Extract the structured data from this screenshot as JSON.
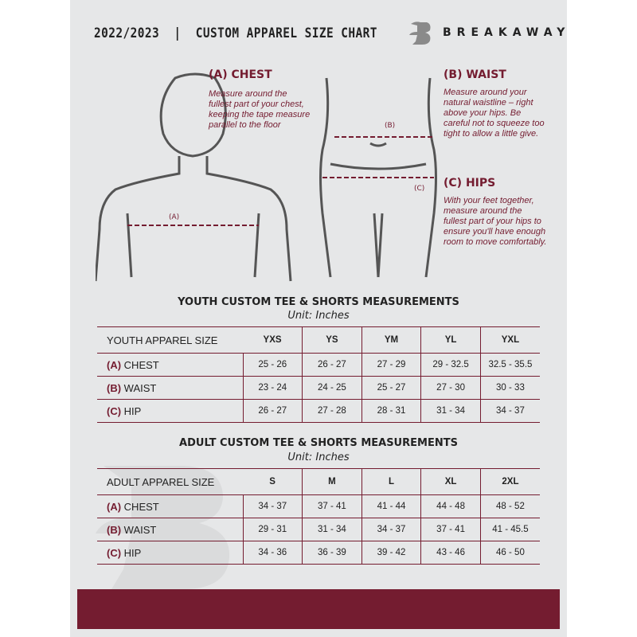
{
  "header": {
    "title": "2022/2023  |  CUSTOM APPAREL SIZE CHART",
    "brand": "BREAKAWAY",
    "logo_letter": "B"
  },
  "chest": {
    "heading": "(A) CHEST",
    "description": "Measure around the fullest part of your chest, keeping the tape measure parallel to the floor",
    "marker": "(A)"
  },
  "waist": {
    "heading": "(B) WAIST",
    "description": "Measure around your natural waistline – right above your hips. Be careful not to squeeze too tight to allow a little give.",
    "marker": "(B)"
  },
  "hips": {
    "heading": "(C) HIPS",
    "description": "With your feet together, measure around the fullest part of your hips to ensure you'll have enough room to move comfortably.",
    "marker": "(C)"
  },
  "youth": {
    "title": "YOUTH CUSTOM TEE & SHORTS MEASUREMENTS",
    "unit": "Unit: Inches",
    "corner": "YOUTH APPAREL SIZE",
    "sizes": [
      "YXS",
      "YS",
      "YM",
      "YL",
      "YXL"
    ],
    "rows": [
      {
        "letter": "(A)",
        "label": "CHEST",
        "values": [
          "25 - 26",
          "26 - 27",
          "27 - 29",
          "29 - 32.5",
          "32.5 - 35.5"
        ]
      },
      {
        "letter": "(B)",
        "label": "WAIST",
        "values": [
          "23 - 24",
          "24 - 25",
          "25 - 27",
          "27 - 30",
          "30 - 33"
        ]
      },
      {
        "letter": "(C)",
        "label": "HIP",
        "values": [
          "26 - 27",
          "27 - 28",
          "28 - 31",
          "31 - 34",
          "34 - 37"
        ]
      }
    ]
  },
  "adult": {
    "title": "ADULT CUSTOM TEE & SHORTS MEASUREMENTS",
    "unit": "Unit: Inches",
    "corner": "ADULT APPAREL SIZE",
    "sizes": [
      "S",
      "M",
      "L",
      "XL",
      "2XL"
    ],
    "rows": [
      {
        "letter": "(A)",
        "label": "CHEST",
        "values": [
          "34 - 37",
          "37 - 41",
          "41 - 44",
          "44 - 48",
          "48 - 52"
        ]
      },
      {
        "letter": "(B)",
        "label": "WAIST",
        "values": [
          "29 - 31",
          "31 - 34",
          "34 - 37",
          "37 - 41",
          "41 - 45.5"
        ]
      },
      {
        "letter": "(C)",
        "label": "HIP",
        "values": [
          "34 - 36",
          "36 - 39",
          "39 - 42",
          "43 - 46",
          "46 - 50"
        ]
      }
    ]
  },
  "colors": {
    "accent": "#741c30",
    "background": "#e6e7e8"
  }
}
